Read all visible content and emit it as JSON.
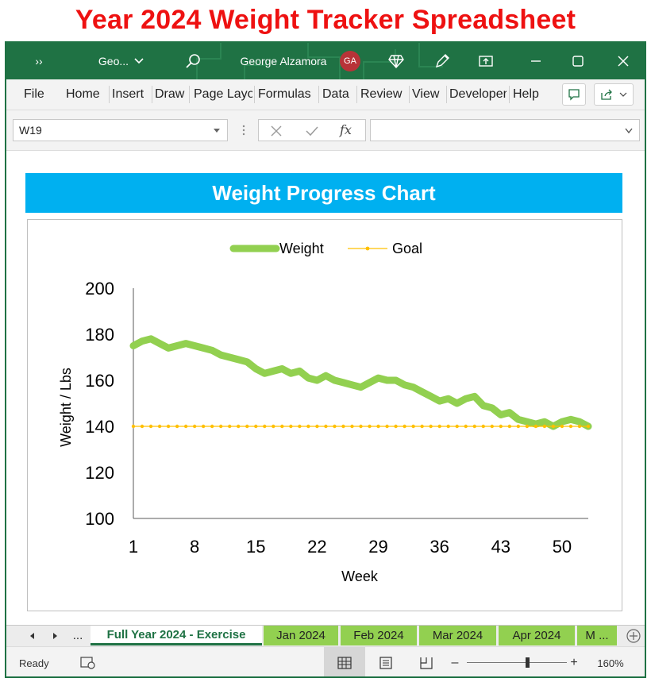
{
  "heading": "Year 2024 Weight Tracker Spreadsheet",
  "titlebar": {
    "expand_glyph": "››",
    "filename": "Geo...",
    "user_name": "George Alzamora",
    "avatar_initials": "GA",
    "icons": [
      "search-icon",
      "diamond-icon",
      "pen-icon",
      "present-icon",
      "minimize-icon",
      "maximize-icon",
      "close-icon"
    ]
  },
  "ribbon": {
    "tabs": [
      "File",
      "Home",
      "Insert",
      "Draw",
      "Page Layout",
      "Formulas",
      "Data",
      "Review",
      "View",
      "Developer",
      "Help"
    ]
  },
  "formula_bar": {
    "name_box": "W19",
    "formula": ""
  },
  "chart_title": "Weight Progress Chart",
  "chart_data": {
    "type": "line",
    "xlabel": "Week",
    "ylabel": "Weight / Lbs",
    "ylim": [
      100,
      200
    ],
    "yticks": [
      100,
      120,
      140,
      160,
      180,
      200
    ],
    "xticks": [
      1,
      8,
      15,
      22,
      29,
      36,
      43,
      50
    ],
    "xlim": [
      1,
      53
    ],
    "legend_position": "top",
    "grid": false,
    "series": [
      {
        "name": "Weight",
        "color": "#92d050",
        "x": [
          1,
          2,
          3,
          4,
          5,
          6,
          7,
          8,
          9,
          10,
          11,
          12,
          13,
          14,
          15,
          16,
          17,
          18,
          19,
          20,
          21,
          22,
          23,
          24,
          25,
          26,
          27,
          28,
          29,
          30,
          31,
          32,
          33,
          34,
          35,
          36,
          37,
          38,
          39,
          40,
          41,
          42,
          43,
          44,
          45,
          46,
          47,
          48,
          49,
          50,
          51,
          52,
          53
        ],
        "values": [
          175,
          177,
          178,
          176,
          174,
          175,
          176,
          175,
          174,
          173,
          171,
          170,
          169,
          168,
          165,
          163,
          164,
          165,
          163,
          164,
          161,
          160,
          162,
          160,
          159,
          158,
          157,
          159,
          161,
          160,
          160,
          158,
          157,
          155,
          153,
          151,
          152,
          150,
          152,
          153,
          149,
          148,
          145,
          146,
          143,
          142,
          141,
          142,
          140,
          142,
          143,
          142,
          140
        ]
      },
      {
        "name": "Goal",
        "color": "#ffc000",
        "x": [
          1,
          2,
          3,
          4,
          5,
          6,
          7,
          8,
          9,
          10,
          11,
          12,
          13,
          14,
          15,
          16,
          17,
          18,
          19,
          20,
          21,
          22,
          23,
          24,
          25,
          26,
          27,
          28,
          29,
          30,
          31,
          32,
          33,
          34,
          35,
          36,
          37,
          38,
          39,
          40,
          41,
          42,
          43,
          44,
          45,
          46,
          47,
          48,
          49,
          50,
          51,
          52,
          53
        ],
        "values": [
          140,
          140,
          140,
          140,
          140,
          140,
          140,
          140,
          140,
          140,
          140,
          140,
          140,
          140,
          140,
          140,
          140,
          140,
          140,
          140,
          140,
          140,
          140,
          140,
          140,
          140,
          140,
          140,
          140,
          140,
          140,
          140,
          140,
          140,
          140,
          140,
          140,
          140,
          140,
          140,
          140,
          140,
          140,
          140,
          140,
          140,
          140,
          140,
          140,
          140,
          140,
          140,
          140
        ]
      }
    ]
  },
  "sheet_tabs": {
    "nav_more": "...",
    "tabs": [
      {
        "label": "Full Year 2024 - Exercise",
        "active": true
      },
      {
        "label": "Jan 2024",
        "active": false
      },
      {
        "label": "Feb 2024",
        "active": false
      },
      {
        "label": "Mar 2024",
        "active": false
      },
      {
        "label": "Apr 2024",
        "active": false
      },
      {
        "label": "M ...",
        "active": false
      }
    ]
  },
  "status_bar": {
    "status": "Ready",
    "zoom": "160%",
    "zoom_fraction": 0.6
  }
}
